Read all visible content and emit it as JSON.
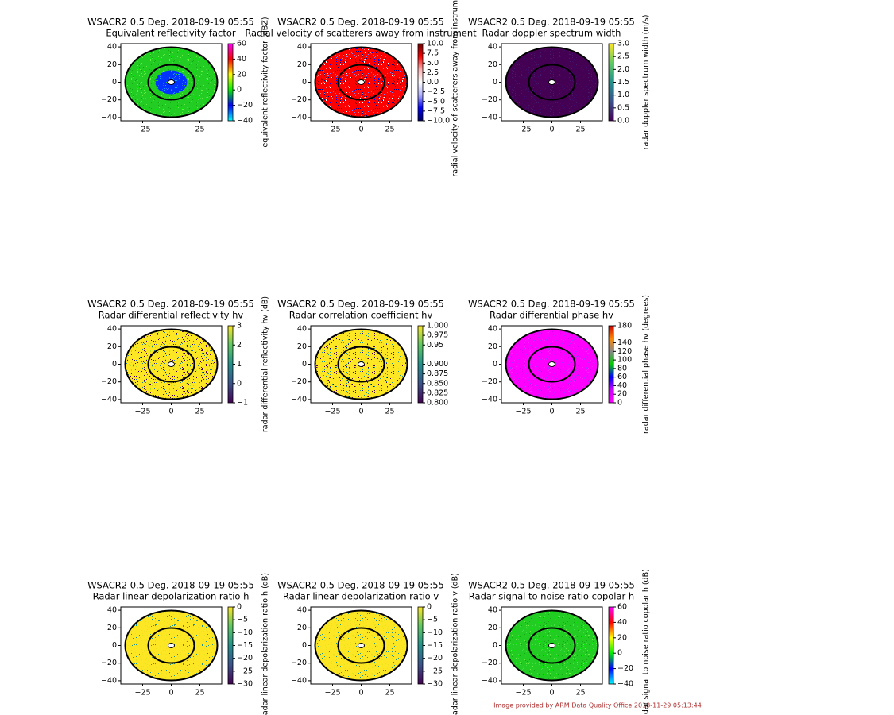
{
  "panels": [
    {
      "title": "WSACR2 0.5 Deg. 2018-09-19 05:55",
      "subtitle": "Equivalent reflectivity factor",
      "cbar_label": "equivalent reflectivity factor (dBZ)",
      "xticks": [
        {
          "value": -25,
          "label": "−25"
        },
        {
          "value": 25,
          "label": "25"
        }
      ],
      "yticks": [
        40,
        20,
        0,
        {
          "value": -20,
          "label": "−20"
        },
        {
          "value": -40,
          "label": "−40"
        }
      ],
      "cticks": [
        60,
        40,
        20,
        0,
        {
          "value": -20,
          "label": "−20"
        },
        {
          "value": -40,
          "label": "−40"
        }
      ],
      "colormap": [
        "#ff00ff",
        "#ff0000",
        "#ffff00",
        "#00ee00",
        "#0000ff",
        "#00ffff"
      ],
      "dots": [
        "#22cc22",
        "#00ee00",
        "#44dd44",
        "#11aa11",
        "#66ee44"
      ],
      "center_dots": [
        "#0033ff",
        "#3366ff",
        "#00aaff",
        "#22cc22"
      ]
    },
    {
      "title": "WSACR2 0.5 Deg. 2018-09-19 05:55",
      "subtitle": "Radial velocity of scatterers away from instrument",
      "cbar_label": "radial velocity of scatterers away from instrument",
      "xticks": [
        {
          "value": -25,
          "label": "−25"
        },
        0,
        25
      ],
      "yticks": [
        40,
        20,
        0,
        {
          "value": -20,
          "label": "−20"
        },
        {
          "value": -40,
          "label": "−40"
        }
      ],
      "cticks": [
        {
          "value": 10,
          "label": "10.0"
        },
        7.5,
        {
          "value": 5,
          "label": "5.0"
        },
        2.5,
        {
          "value": 0,
          "label": "0.0"
        },
        {
          "value": -2.5,
          "label": "−2.5"
        },
        {
          "value": -5,
          "label": "−5.0"
        },
        {
          "value": -7.5,
          "label": "−7.5"
        },
        {
          "value": -10,
          "label": "−10.0"
        }
      ],
      "colormap": [
        "#6b0000",
        "#ff0000",
        "#ffb0b0",
        "#ffffff",
        "#b0b0ff",
        "#0000ff",
        "#00006b"
      ],
      "dots": [
        "#ff0000",
        "#0000ff",
        "#ffffff",
        "#8b0000",
        "#00008b",
        "#ff8080",
        "#8080ff"
      ]
    },
    {
      "title": "WSACR2 0.5 Deg. 2018-09-19 05:55",
      "subtitle": "Radar doppler spectrum width",
      "cbar_label": "radar doppler spectrum width (m/s)",
      "xticks": [
        {
          "value": -25,
          "label": "−25"
        },
        0,
        25
      ],
      "yticks": [
        40,
        20,
        0,
        {
          "value": -20,
          "label": "−20"
        },
        {
          "value": -40,
          "label": "−40"
        }
      ],
      "cticks": [
        {
          "value": 3,
          "label": "3.0"
        },
        2.5,
        {
          "value": 2,
          "label": "2.0"
        },
        1.5,
        {
          "value": 1,
          "label": "1.0"
        },
        0.5,
        {
          "value": 0,
          "label": "0.0"
        }
      ],
      "colormap": [
        "#fde725",
        "#5ec962",
        "#21918c",
        "#3b528b",
        "#440154"
      ],
      "dots": [
        "#440154",
        "#46085c",
        "#3b0f70",
        "#481a6c",
        "#440154"
      ]
    },
    {
      "title": "WSACR2 0.5 Deg. 2018-09-19 05:55",
      "subtitle": "Radar differential reflectivity hv",
      "cbar_label": "radar differential reflectivity hv (dB)",
      "xticks": [
        {
          "value": -25,
          "label": "−25"
        },
        0,
        25
      ],
      "yticks": [
        40,
        20,
        0,
        {
          "value": -20,
          "label": "−20"
        },
        {
          "value": -40,
          "label": "−40"
        }
      ],
      "cticks": [
        3,
        2,
        1,
        0,
        {
          "value": -1,
          "label": "−1"
        }
      ],
      "colormap": [
        "#fde725",
        "#5ec962",
        "#21918c",
        "#3b528b",
        "#440154"
      ],
      "dots": [
        "#fde725",
        "#440154",
        "#2a788e",
        "#fde725",
        "#b5de2b",
        "#440154"
      ]
    },
    {
      "title": "WSACR2 0.5 Deg. 2018-09-19 05:55",
      "subtitle": "Radar correlation coefficient hv",
      "xticks": [
        {
          "value": -25,
          "label": "−25"
        },
        0,
        25
      ],
      "yticks": [
        40,
        20,
        0,
        {
          "value": -20,
          "label": "−20"
        },
        {
          "value": -40,
          "label": "−40"
        }
      ],
      "cticks": [
        {
          "value": 1,
          "label": "1.000"
        },
        0.975,
        0.95,
        {
          "value": 0.9,
          "label": "0.900"
        },
        0.875,
        {
          "value": 0.85,
          "label": "0.850"
        },
        0.825,
        {
          "value": 0.8,
          "label": "0.800"
        }
      ],
      "colormap": [
        "#fde725",
        "#5ec962",
        "#21918c",
        "#3b528b",
        "#440154"
      ],
      "dots": [
        "#fde725",
        "#440154",
        "#e4e419",
        "#fde725",
        "#21918c"
      ]
    },
    {
      "title": "WSACR2 0.5 Deg. 2018-09-19 05:55",
      "subtitle": "Radar differential phase hv",
      "cbar_label": "radar differential phase hv (degrees)",
      "xticks": [
        {
          "value": -25,
          "label": "−25"
        },
        0,
        25
      ],
      "yticks": [
        40,
        20,
        0,
        {
          "value": -20,
          "label": "−20"
        },
        {
          "value": -40,
          "label": "−40"
        }
      ],
      "cticks": [
        180,
        140,
        120,
        100,
        80,
        60,
        40,
        20,
        0
      ],
      "colormap": [
        "#cc0000",
        "#ff8800",
        "#888888",
        "#00cc00",
        "#0000ff",
        "#cc00ff",
        "#ff00ff"
      ],
      "dots": [
        "#ff00ff",
        "#cc22ff",
        "#dd00ee",
        "#aa33ff",
        "#ff22ff"
      ]
    },
    {
      "title": "WSACR2 0.5 Deg. 2018-09-19 05:55",
      "subtitle": "Radar linear depolarization ratio h",
      "cbar_label": "radar linear depolarization ratio h (dB)",
      "xticks": [
        {
          "value": -25,
          "label": "−25"
        },
        0,
        25
      ],
      "yticks": [
        40,
        20,
        0,
        {
          "value": -20,
          "label": "−20"
        },
        {
          "value": -40,
          "label": "−40"
        }
      ],
      "cticks": [
        0,
        {
          "value": -5,
          "label": "−5"
        },
        {
          "value": -10,
          "label": "−10"
        },
        {
          "value": -15,
          "label": "−15"
        },
        {
          "value": -20,
          "label": "−20"
        },
        {
          "value": -25,
          "label": "−25"
        },
        {
          "value": -30,
          "label": "−30"
        }
      ],
      "colormap": [
        "#fde725",
        "#5ec962",
        "#21918c",
        "#3b528b",
        "#440154"
      ],
      "dots": [
        "#fde725",
        "#f0e020",
        "#fde725",
        "#e8e41a",
        "#21918c"
      ]
    },
    {
      "title": "WSACR2 0.5 Deg. 2018-09-19 05:55",
      "subtitle": "Radar linear depolarization ratio v",
      "cbar_label": "radar linear depolarization ratio v (dB)",
      "xticks": [
        {
          "value": -25,
          "label": "−25"
        },
        0,
        25
      ],
      "yticks": [
        40,
        20,
        0,
        {
          "value": -20,
          "label": "−20"
        },
        {
          "value": -40,
          "label": "−40"
        }
      ],
      "cticks": [
        0,
        {
          "value": -5,
          "label": "−5"
        },
        {
          "value": -10,
          "label": "−10"
        },
        {
          "value": -15,
          "label": "−15"
        },
        {
          "value": -20,
          "label": "−20"
        },
        {
          "value": -25,
          "label": "−25"
        },
        {
          "value": -30,
          "label": "−30"
        }
      ],
      "colormap": [
        "#fde725",
        "#5ec962",
        "#21918c",
        "#3b528b",
        "#440154"
      ],
      "dots": [
        "#fde725",
        "#f0e020",
        "#fde725",
        "#e8e41a",
        "#21918c"
      ]
    },
    {
      "title": "WSACR2 0.5 Deg. 2018-09-19 05:55",
      "subtitle": "Radar signal to noise ratio copolar h",
      "cbar_label": "radar signal to noise ratio copolar h (dB)",
      "xticks": [
        {
          "value": -25,
          "label": "−25"
        },
        0,
        25
      ],
      "yticks": [
        40,
        20,
        0,
        {
          "value": -20,
          "label": "−20"
        },
        {
          "value": -40,
          "label": "−40"
        }
      ],
      "cticks": [
        60,
        40,
        20,
        0,
        {
          "value": -20,
          "label": "−20"
        },
        {
          "value": -40,
          "label": "−40"
        }
      ],
      "colormap": [
        "#ff00ff",
        "#ff0000",
        "#ffff00",
        "#00ee00",
        "#0000ff",
        "#00ffff"
      ],
      "dots": [
        "#22cc22",
        "#00ee00",
        "#44dd44",
        "#11aa11",
        "#66ee44"
      ]
    }
  ],
  "footer": "Image provided by ARM Data Quality Office 2018-11-29 05:13:44"
}
